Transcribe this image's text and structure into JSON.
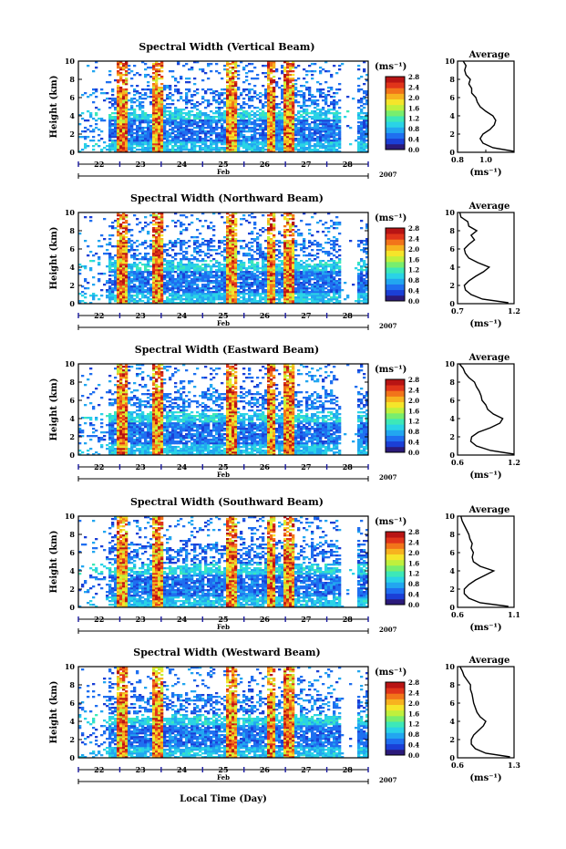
{
  "xlabel": "Local Time (Day)",
  "colorbar": {
    "unit_label": "(ms⁻¹)",
    "ticks": [
      "0.0",
      "0.4",
      "0.8",
      "1.2",
      "1.6",
      "2.0",
      "2.4",
      "2.8"
    ],
    "colors": [
      "#2b1a7a",
      "#1b3fd6",
      "#1f6ff0",
      "#22a6f0",
      "#2ad3e6",
      "#3de8b8",
      "#78ee6e",
      "#bff03d",
      "#f5e52a",
      "#f7b21f",
      "#f2741a",
      "#e0341a",
      "#b81414"
    ]
  },
  "date_axis": {
    "days": [
      "22",
      "23",
      "24",
      "25",
      "26",
      "27",
      "28"
    ],
    "month": "Feb",
    "year": "2007"
  },
  "chart_data": [
    {
      "type": "heatmap",
      "title": "Spectral Width (Vertical Beam)",
      "ylabel": "Height (km)",
      "xlabel": "",
      "y_ticks": [
        "0",
        "2",
        "4",
        "6",
        "8",
        "10"
      ],
      "ylim": [
        0,
        10
      ],
      "value_range": [
        0.0,
        2.8
      ],
      "profile": {
        "title": "Average",
        "xlabel": "(ms⁻¹)",
        "xticks": [
          "0.8",
          "1.0"
        ],
        "xlim": [
          0.8,
          1.2
        ],
        "ylim": [
          0,
          10
        ],
        "height_km": [
          0.1,
          0.5,
          1,
          1.5,
          2,
          2.5,
          3,
          3.5,
          4,
          4.5,
          5,
          5.5,
          6,
          6.5,
          7,
          7.5,
          8,
          8.5,
          9,
          9.5,
          10
        ],
        "values": [
          1.2,
          1.05,
          0.98,
          0.96,
          0.98,
          1.03,
          1.06,
          1.07,
          1.05,
          1.0,
          0.96,
          0.94,
          0.93,
          0.9,
          0.9,
          0.88,
          0.89,
          0.86,
          0.85,
          0.86,
          0.84
        ]
      }
    },
    {
      "type": "heatmap",
      "title": "Spectral Width (Northward Beam)",
      "ylabel": "Height (km)",
      "xlabel": "",
      "y_ticks": [
        "0",
        "2",
        "4",
        "6",
        "8",
        "10"
      ],
      "ylim": [
        0,
        10
      ],
      "value_range": [
        0.0,
        2.8
      ],
      "profile": {
        "title": "Average",
        "xlabel": "(ms⁻¹)",
        "xticks": [
          "0.7",
          "1.2"
        ],
        "xlim": [
          0.7,
          1.2
        ],
        "ylim": [
          0,
          10
        ],
        "height_km": [
          0.1,
          0.5,
          1,
          1.5,
          2,
          2.5,
          3,
          3.5,
          4,
          4.5,
          5,
          5.5,
          6,
          6.5,
          7,
          7.5,
          8,
          8.5,
          9,
          9.5,
          10
        ],
        "values": [
          1.15,
          0.92,
          0.82,
          0.77,
          0.76,
          0.8,
          0.86,
          0.93,
          0.98,
          0.88,
          0.8,
          0.77,
          0.76,
          0.8,
          0.85,
          0.82,
          0.87,
          0.8,
          0.79,
          0.73,
          0.72
        ]
      }
    },
    {
      "type": "heatmap",
      "title": "Spectral Width (Eastward Beam)",
      "ylabel": "Height (km)",
      "xlabel": "",
      "y_ticks": [
        "0",
        "2",
        "4",
        "6",
        "8",
        "10"
      ],
      "ylim": [
        0,
        10
      ],
      "value_range": [
        0.0,
        2.8
      ],
      "profile": {
        "title": "Average",
        "xlabel": "(ms⁻¹)",
        "xticks": [
          "0.6",
          "1.2"
        ],
        "xlim": [
          0.6,
          1.2
        ],
        "ylim": [
          0,
          10
        ],
        "height_km": [
          0.1,
          0.5,
          1,
          1.5,
          2,
          2.5,
          3,
          3.5,
          4,
          4.5,
          5,
          5.5,
          6,
          6.5,
          7,
          7.5,
          8,
          8.5,
          9,
          9.5,
          10
        ],
        "values": [
          1.2,
          0.95,
          0.8,
          0.74,
          0.75,
          0.82,
          0.95,
          1.05,
          1.08,
          0.98,
          0.92,
          0.9,
          0.86,
          0.85,
          0.83,
          0.8,
          0.78,
          0.72,
          0.68,
          0.66,
          0.62
        ]
      }
    },
    {
      "type": "heatmap",
      "title": "Spectral Width (Southward Beam)",
      "ylabel": "Height (km)",
      "xlabel": "",
      "y_ticks": [
        "0",
        "2",
        "4",
        "6",
        "8",
        "10"
      ],
      "ylim": [
        0,
        10
      ],
      "value_range": [
        0.0,
        2.8
      ],
      "profile": {
        "title": "Average",
        "xlabel": "(ms⁻¹)",
        "xticks": [
          "0.6",
          "1.1"
        ],
        "xlim": [
          0.6,
          1.1
        ],
        "ylim": [
          0,
          10
        ],
        "height_km": [
          0.1,
          0.5,
          1,
          1.5,
          2,
          2.5,
          3,
          3.5,
          4,
          4.5,
          5,
          5.5,
          6,
          6.5,
          7,
          7.5,
          8,
          8.5,
          9,
          9.5,
          10
        ],
        "values": [
          1.05,
          0.8,
          0.7,
          0.66,
          0.66,
          0.7,
          0.76,
          0.84,
          0.92,
          0.8,
          0.74,
          0.73,
          0.74,
          0.72,
          0.73,
          0.71,
          0.7,
          0.68,
          0.66,
          0.64,
          0.63
        ]
      }
    },
    {
      "type": "heatmap",
      "title": "Spectral Width (Westward Beam)",
      "ylabel": "Height (km)",
      "xlabel": "Local Time (Day)",
      "y_ticks": [
        "0",
        "2",
        "4",
        "6",
        "8",
        "10"
      ],
      "ylim": [
        0,
        10
      ],
      "value_range": [
        0.0,
        2.8
      ],
      "profile": {
        "title": "Average",
        "xlabel": "(ms⁻¹)",
        "xticks": [
          "0.6",
          "1.3"
        ],
        "xlim": [
          0.6,
          1.3
        ],
        "ylim": [
          0,
          10
        ],
        "height_km": [
          0.1,
          0.5,
          1,
          1.5,
          2,
          2.5,
          3,
          3.5,
          4,
          4.5,
          5,
          5.5,
          6,
          6.5,
          7,
          7.5,
          8,
          8.5,
          9,
          9.5,
          10
        ],
        "values": [
          1.25,
          0.95,
          0.82,
          0.77,
          0.77,
          0.8,
          0.86,
          0.92,
          0.95,
          0.88,
          0.84,
          0.82,
          0.8,
          0.79,
          0.78,
          0.76,
          0.76,
          0.72,
          0.68,
          0.66,
          0.63
        ]
      }
    }
  ]
}
